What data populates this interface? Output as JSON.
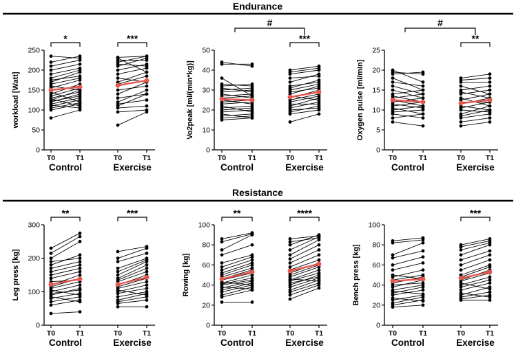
{
  "sections": [
    {
      "title": "Endurance"
    },
    {
      "title": "Resistance"
    }
  ],
  "colors": {
    "individual": "#000000",
    "mean": "#e8554e"
  },
  "chart_data": [
    {
      "type": "line",
      "section": "Endurance",
      "ylabel": "workload [Watt]",
      "ylim": [
        0,
        250
      ],
      "yticks": [
        "0",
        "50",
        "100",
        "150",
        "200",
        "250"
      ],
      "groups": [
        "Control",
        "Exercise"
      ],
      "timepoints": [
        "T0",
        "T1"
      ],
      "significance": [
        {
          "group": "Control",
          "label": "*"
        },
        {
          "group": "Exercise",
          "label": "***"
        }
      ],
      "between_group": null,
      "individual": {
        "Control": [
          [
            80,
            100
          ],
          [
            100,
            115
          ],
          [
            105,
            118
          ],
          [
            110,
            125
          ],
          [
            112,
            105
          ],
          [
            115,
            130
          ],
          [
            120,
            140
          ],
          [
            122,
            135
          ],
          [
            125,
            150
          ],
          [
            128,
            110
          ],
          [
            130,
            145
          ],
          [
            135,
            155
          ],
          [
            140,
            165
          ],
          [
            145,
            120
          ],
          [
            150,
            160
          ],
          [
            155,
            175
          ],
          [
            160,
            150
          ],
          [
            165,
            180
          ],
          [
            170,
            195
          ],
          [
            175,
            185
          ],
          [
            180,
            200
          ],
          [
            190,
            205
          ],
          [
            200,
            215
          ],
          [
            210,
            225
          ],
          [
            220,
            235
          ],
          [
            235,
            230
          ]
        ],
        "Exercise": [
          [
            62,
            95
          ],
          [
            95,
            100
          ],
          [
            105,
            110
          ],
          [
            110,
            140
          ],
          [
            115,
            125
          ],
          [
            120,
            150
          ],
          [
            130,
            140
          ],
          [
            140,
            170
          ],
          [
            150,
            160
          ],
          [
            160,
            175
          ],
          [
            165,
            185
          ],
          [
            170,
            195
          ],
          [
            180,
            170
          ],
          [
            190,
            205
          ],
          [
            200,
            215
          ],
          [
            210,
            230
          ],
          [
            215,
            210
          ],
          [
            220,
            235
          ],
          [
            225,
            225
          ],
          [
            230,
            195
          ],
          [
            232,
            235
          ]
        ]
      },
      "mean": {
        "Control": [
          150,
          158
        ],
        "Exercise": [
          162,
          174
        ]
      }
    },
    {
      "type": "line",
      "section": "Endurance",
      "ylabel": "Vo2peak [ml/(min*kg)]",
      "ylim": [
        0,
        50
      ],
      "yticks": [
        "0",
        "10",
        "20",
        "30",
        "40",
        "50"
      ],
      "groups": [
        "Control",
        "Exercise"
      ],
      "timepoints": [
        "T0",
        "T1"
      ],
      "significance": [
        {
          "group": "Exercise",
          "label": "***"
        }
      ],
      "between_group": {
        "label": "#"
      },
      "individual": {
        "Control": [
          [
            15,
            16
          ],
          [
            16,
            17
          ],
          [
            17,
            18
          ],
          [
            18,
            16
          ],
          [
            19,
            20
          ],
          [
            20,
            21
          ],
          [
            21,
            22
          ],
          [
            22,
            19
          ],
          [
            23,
            24
          ],
          [
            24,
            25
          ],
          [
            25,
            23
          ],
          [
            26,
            27
          ],
          [
            27,
            28
          ],
          [
            28,
            26
          ],
          [
            29,
            30
          ],
          [
            30,
            31
          ],
          [
            31,
            29
          ],
          [
            32,
            33
          ],
          [
            33,
            32
          ],
          [
            36,
            27
          ],
          [
            44,
            42
          ],
          [
            43,
            43
          ]
        ],
        "Exercise": [
          [
            14,
            18
          ],
          [
            18,
            20
          ],
          [
            19,
            22
          ],
          [
            20,
            21
          ],
          [
            21,
            24
          ],
          [
            22,
            26
          ],
          [
            23,
            23
          ],
          [
            24,
            27
          ],
          [
            25,
            28
          ],
          [
            26,
            30
          ],
          [
            27,
            25
          ],
          [
            28,
            32
          ],
          [
            29,
            31
          ],
          [
            30,
            33
          ],
          [
            31,
            35
          ],
          [
            32,
            34
          ],
          [
            34,
            38
          ],
          [
            36,
            37
          ],
          [
            38,
            40
          ],
          [
            39,
            41
          ],
          [
            40,
            42
          ]
        ]
      },
      "mean": {
        "Control": [
          25.5,
          25.0
        ],
        "Exercise": [
          26.5,
          29.0
        ]
      }
    },
    {
      "type": "line",
      "section": "Endurance",
      "ylabel": "Oxygen pulse [ml/min]",
      "ylim": [
        0,
        25
      ],
      "yticks": [
        "0",
        "5",
        "10",
        "15",
        "20",
        "25"
      ],
      "groups": [
        "Control",
        "Exercise"
      ],
      "timepoints": [
        "T0",
        "T1"
      ],
      "significance": [
        {
          "group": "Exercise",
          "label": "**"
        }
      ],
      "between_group": {
        "label": "#"
      },
      "individual": {
        "Control": [
          [
            7,
            6
          ],
          [
            8,
            9
          ],
          [
            9,
            8
          ],
          [
            9.5,
            10
          ],
          [
            10,
            11
          ],
          [
            10.5,
            9
          ],
          [
            11,
            12
          ],
          [
            11.5,
            10.5
          ],
          [
            12,
            13
          ],
          [
            12.5,
            11
          ],
          [
            13,
            14
          ],
          [
            13.5,
            12
          ],
          [
            14,
            15
          ],
          [
            15,
            13
          ],
          [
            16,
            14
          ],
          [
            17,
            16
          ],
          [
            18,
            15
          ],
          [
            19,
            19.5
          ],
          [
            20,
            17
          ],
          [
            19.5,
            19
          ]
        ],
        "Exercise": [
          [
            6,
            7
          ],
          [
            7,
            8
          ],
          [
            8,
            9
          ],
          [
            8.5,
            10
          ],
          [
            9,
            11
          ],
          [
            10,
            9.5
          ],
          [
            10.5,
            12
          ],
          [
            11,
            10
          ],
          [
            11.5,
            13
          ],
          [
            12,
            12
          ],
          [
            12.5,
            14
          ],
          [
            13,
            11
          ],
          [
            14,
            15
          ],
          [
            14.5,
            13
          ],
          [
            15,
            16
          ],
          [
            16,
            14
          ],
          [
            17,
            17
          ],
          [
            17.5,
            18
          ],
          [
            18,
            19
          ]
        ]
      },
      "mean": {
        "Control": [
          12.5,
          12.0
        ],
        "Exercise": [
          11.7,
          12.5
        ]
      }
    },
    {
      "type": "line",
      "section": "Resistance",
      "ylabel": "Leg press [kg]",
      "ylim": [
        0,
        300
      ],
      "yticks": [
        "0",
        "100",
        "200",
        "300"
      ],
      "groups": [
        "Control",
        "Exercise"
      ],
      "timepoints": [
        "T0",
        "T1"
      ],
      "significance": [
        {
          "group": "Control",
          "label": "**"
        },
        {
          "group": "Exercise",
          "label": "***"
        }
      ],
      "between_group": null,
      "individual": {
        "Control": [
          [
            35,
            40
          ],
          [
            60,
            75
          ],
          [
            70,
            85
          ],
          [
            80,
            95
          ],
          [
            85,
            70
          ],
          [
            90,
            110
          ],
          [
            95,
            105
          ],
          [
            100,
            120
          ],
          [
            105,
            90
          ],
          [
            110,
            130
          ],
          [
            115,
            140
          ],
          [
            120,
            150
          ],
          [
            130,
            135
          ],
          [
            140,
            160
          ],
          [
            150,
            170
          ],
          [
            160,
            180
          ],
          [
            170,
            190
          ],
          [
            180,
            210
          ],
          [
            190,
            200
          ],
          [
            200,
            250
          ],
          [
            215,
            265
          ],
          [
            230,
            275
          ]
        ],
        "Exercise": [
          [
            55,
            55
          ],
          [
            65,
            75
          ],
          [
            70,
            85
          ],
          [
            75,
            95
          ],
          [
            85,
            100
          ],
          [
            95,
            110
          ],
          [
            100,
            120
          ],
          [
            105,
            90
          ],
          [
            110,
            130
          ],
          [
            115,
            140
          ],
          [
            120,
            150
          ],
          [
            130,
            160
          ],
          [
            135,
            170
          ],
          [
            140,
            180
          ],
          [
            150,
            190
          ],
          [
            160,
            195
          ],
          [
            170,
            200
          ],
          [
            190,
            215
          ],
          [
            200,
            230
          ],
          [
            220,
            235
          ]
        ]
      },
      "mean": {
        "Control": [
          122,
          138
        ],
        "Exercise": [
          122,
          143
        ]
      }
    },
    {
      "type": "line",
      "section": "Resistance",
      "ylabel": "Rowing [kg]",
      "ylim": [
        0,
        100
      ],
      "yticks": [
        "0",
        "20",
        "40",
        "60",
        "80",
        "100"
      ],
      "groups": [
        "Control",
        "Exercise"
      ],
      "timepoints": [
        "T0",
        "T1"
      ],
      "significance": [
        {
          "group": "Control",
          "label": "**"
        },
        {
          "group": "Exercise",
          "label": "****"
        }
      ],
      "between_group": null,
      "individual": {
        "Control": [
          [
            23,
            23
          ],
          [
            28,
            35
          ],
          [
            30,
            38
          ],
          [
            33,
            40
          ],
          [
            35,
            42
          ],
          [
            37,
            44
          ],
          [
            38,
            36
          ],
          [
            40,
            45
          ],
          [
            41,
            47
          ],
          [
            42,
            50
          ],
          [
            43,
            40
          ],
          [
            45,
            52
          ],
          [
            46,
            55
          ],
          [
            48,
            57
          ],
          [
            50,
            60
          ],
          [
            52,
            62
          ],
          [
            55,
            65
          ],
          [
            58,
            68
          ],
          [
            62,
            70
          ],
          [
            70,
            80
          ],
          [
            75,
            90
          ],
          [
            83,
            91
          ],
          [
            86,
            92
          ]
        ],
        "Exercise": [
          [
            26,
            37
          ],
          [
            30,
            40
          ],
          [
            33,
            42
          ],
          [
            35,
            45
          ],
          [
            38,
            47
          ],
          [
            40,
            50
          ],
          [
            42,
            48
          ],
          [
            44,
            52
          ],
          [
            45,
            55
          ],
          [
            46,
            44
          ],
          [
            48,
            58
          ],
          [
            50,
            60
          ],
          [
            52,
            62
          ],
          [
            55,
            65
          ],
          [
            58,
            70
          ],
          [
            62,
            75
          ],
          [
            66,
            80
          ],
          [
            70,
            85
          ],
          [
            75,
            88
          ],
          [
            80,
            90
          ],
          [
            83,
            87
          ],
          [
            86,
            89
          ]
        ]
      },
      "mean": {
        "Control": [
          46,
          53
        ],
        "Exercise": [
          54,
          61
        ]
      }
    },
    {
      "type": "line",
      "section": "Resistance",
      "ylabel": "Bench press [kg]",
      "ylim": [
        0,
        100
      ],
      "yticks": [
        "0",
        "20",
        "40",
        "60",
        "80",
        "100"
      ],
      "groups": [
        "Control",
        "Exercise"
      ],
      "timepoints": [
        "T0",
        "T1"
      ],
      "significance": [
        {
          "group": "Exercise",
          "label": "***"
        }
      ],
      "between_group": null,
      "individual": {
        "Control": [
          [
            18,
            20
          ],
          [
            20,
            25
          ],
          [
            22,
            28
          ],
          [
            25,
            30
          ],
          [
            27,
            24
          ],
          [
            30,
            35
          ],
          [
            32,
            38
          ],
          [
            34,
            31
          ],
          [
            35,
            40
          ],
          [
            38,
            45
          ],
          [
            40,
            42
          ],
          [
            42,
            48
          ],
          [
            45,
            50
          ],
          [
            48,
            55
          ],
          [
            50,
            46
          ],
          [
            55,
            62
          ],
          [
            60,
            68
          ],
          [
            67,
            74
          ],
          [
            70,
            82
          ],
          [
            82,
            85
          ],
          [
            84,
            87
          ]
        ],
        "Exercise": [
          [
            25,
            25
          ],
          [
            26,
            30
          ],
          [
            28,
            33
          ],
          [
            30,
            38
          ],
          [
            32,
            28
          ],
          [
            35,
            42
          ],
          [
            38,
            45
          ],
          [
            40,
            48
          ],
          [
            42,
            36
          ],
          [
            44,
            52
          ],
          [
            45,
            55
          ],
          [
            48,
            58
          ],
          [
            50,
            60
          ],
          [
            55,
            65
          ],
          [
            60,
            70
          ],
          [
            65,
            74
          ],
          [
            70,
            80
          ],
          [
            75,
            82
          ],
          [
            78,
            84
          ],
          [
            80,
            86
          ]
        ]
      },
      "mean": {
        "Control": [
          44,
          46
        ],
        "Exercise": [
          47,
          53
        ]
      }
    }
  ]
}
